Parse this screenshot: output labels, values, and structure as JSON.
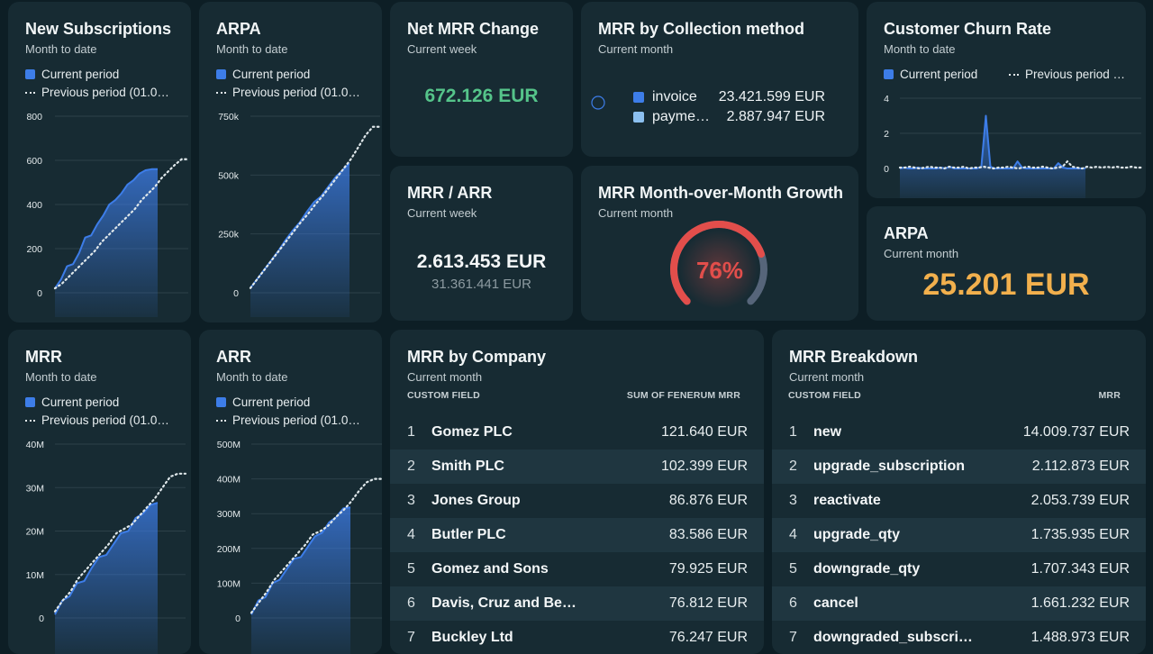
{
  "colors": {
    "background": "#0d1e25",
    "card": "#172b33",
    "series_blue": "#3d7de8",
    "series_light_blue": "#8cc0f0",
    "previous_dots": "#dfe7ea",
    "green_value": "#55c48a",
    "orange_value": "#f2b04d",
    "gauge_red": "#e24e4b",
    "gauge_track": "#56657a"
  },
  "legend": {
    "current": "Current period",
    "previous": "Previous period (01.0…",
    "previous_churn": "Previous period …"
  },
  "cards": {
    "new_subscriptions": {
      "title": "New Subscriptions",
      "subtitle": "Month to date"
    },
    "arpa_chart": {
      "title": "ARPA",
      "subtitle": "Month to date"
    },
    "net_mrr": {
      "title": "Net MRR Change",
      "subtitle": "Current week",
      "value": "672.126 EUR"
    },
    "collection": {
      "title": "MRR by Collection method",
      "subtitle": "Current month",
      "items": [
        {
          "label": "invoice",
          "value": "23.421.599 EUR"
        },
        {
          "label": "payme…",
          "value": "2.887.947 EUR"
        }
      ]
    },
    "churn": {
      "title": "Customer Churn Rate",
      "subtitle": "Month to date"
    },
    "mrr_arr": {
      "title": "MRR / ARR",
      "subtitle": "Current week",
      "value": "2.613.453 EUR",
      "secondary": "31.361.441 EUR"
    },
    "mom_growth": {
      "title": "MRR Month-over-Month Growth",
      "subtitle": "Current month",
      "value": "76%"
    },
    "arpa_kpi": {
      "title": "ARPA",
      "subtitle": "Current month",
      "value": "25.201 EUR"
    },
    "mrr_chart": {
      "title": "MRR",
      "subtitle": "Month to date"
    },
    "arr_chart": {
      "title": "ARR",
      "subtitle": "Month to date"
    },
    "mrr_company": {
      "title": "MRR by Company",
      "subtitle": "Current month",
      "col_left": "CUSTOM FIELD",
      "col_right": "SUM OF FENERUM MRR",
      "rows": [
        {
          "n": "1",
          "name": "Gomez PLC",
          "value": "121.640 EUR"
        },
        {
          "n": "2",
          "name": "Smith PLC",
          "value": "102.399 EUR"
        },
        {
          "n": "3",
          "name": "Jones Group",
          "value": "86.876 EUR"
        },
        {
          "n": "4",
          "name": "Butler PLC",
          "value": "83.586 EUR"
        },
        {
          "n": "5",
          "name": "Gomez and Sons",
          "value": "79.925 EUR"
        },
        {
          "n": "6",
          "name": "Davis, Cruz and Be…",
          "value": "76.812 EUR"
        },
        {
          "n": "7",
          "name": "Buckley Ltd",
          "value": "76.247 EUR"
        }
      ]
    },
    "mrr_breakdown": {
      "title": "MRR Breakdown",
      "subtitle": "Current month",
      "col_left": "CUSTOM FIELD",
      "col_right": "MRR",
      "rows": [
        {
          "n": "1",
          "name": "new",
          "value": "14.009.737 EUR"
        },
        {
          "n": "2",
          "name": "upgrade_subscription",
          "value": "2.112.873 EUR"
        },
        {
          "n": "3",
          "name": "reactivate",
          "value": "2.053.739 EUR"
        },
        {
          "n": "4",
          "name": "upgrade_qty",
          "value": "1.735.935 EUR"
        },
        {
          "n": "5",
          "name": "downgrade_qty",
          "value": "1.707.343 EUR"
        },
        {
          "n": "6",
          "name": "cancel",
          "value": "1.661.232 EUR"
        },
        {
          "n": "7",
          "name": "downgraded_subscri…",
          "value": "1.488.973 EUR"
        }
      ]
    }
  },
  "chart_data": [
    {
      "id": "new_subscriptions",
      "type": "area",
      "yticks": [
        "800",
        "600",
        "400",
        "200",
        "0"
      ],
      "ylim": [
        0,
        800
      ],
      "series": [
        {
          "name": "Current period",
          "values": [
            20,
            60,
            120,
            130,
            180,
            250,
            260,
            310,
            350,
            400,
            420,
            450,
            490,
            510,
            540,
            555,
            560,
            560
          ]
        },
        {
          "name": "Previous period (01.0…",
          "values": [
            20,
            40,
            70,
            100,
            130,
            160,
            190,
            230,
            260,
            290,
            320,
            350,
            380,
            420,
            450,
            480,
            520,
            550,
            580,
            605,
            605
          ]
        }
      ]
    },
    {
      "id": "arpa",
      "type": "area",
      "yticks": [
        "750k",
        "500k",
        "250k",
        "0"
      ],
      "ylim": [
        0,
        750000
      ],
      "series": [
        {
          "name": "Current period",
          "values": [
            20000,
            60000,
            100000,
            140000,
            180000,
            225000,
            265000,
            300000,
            345000,
            385000,
            410000,
            450000,
            490000,
            520000,
            550000
          ]
        },
        {
          "name": "Previous period (01.0…",
          "values": [
            20000,
            60000,
            100000,
            140000,
            180000,
            220000,
            260000,
            300000,
            335000,
            375000,
            410000,
            450000,
            490000,
            530000,
            570000,
            620000,
            670000,
            705000,
            705000
          ]
        }
      ]
    },
    {
      "id": "churn",
      "type": "line",
      "yticks": [
        "4",
        "2",
        "0"
      ],
      "ylim": [
        0,
        4
      ],
      "series": [
        {
          "name": "Current period",
          "values": [
            0,
            0.05,
            0,
            0,
            0.05,
            0,
            0,
            0,
            0,
            0.05,
            0,
            0.1,
            0,
            0,
            0,
            0,
            0,
            0,
            0.1,
            3.0,
            0.1,
            0,
            0,
            0,
            0,
            0,
            0.4,
            0.05,
            0,
            0,
            0,
            0,
            0,
            0,
            0,
            0.3,
            0.05,
            0,
            0,
            0,
            0,
            0
          ]
        },
        {
          "name": "Previous period …",
          "values": [
            0.05,
            0.05,
            0.1,
            0.05,
            0,
            0.05,
            0.1,
            0.05,
            0.05,
            0,
            0.1,
            0.05,
            0.05,
            0.1,
            0,
            0.05,
            0.05,
            0.1,
            0.05,
            0,
            0.05,
            0.05,
            0.1,
            0.05,
            0,
            0.05,
            0.1,
            0.05,
            0.05,
            0.1,
            0.05,
            0,
            0.05,
            0.1,
            0.4,
            0.1,
            0.05,
            0,
            0.1,
            0.05,
            0.1,
            0.05,
            0.1,
            0.05,
            0.1,
            0.05,
            0.05,
            0.1,
            0.05,
            0.05
          ]
        }
      ]
    },
    {
      "id": "mrr",
      "type": "area",
      "yticks": [
        "40M",
        "30M",
        "20M",
        "10M",
        "0"
      ],
      "ylim": [
        0,
        40000000
      ],
      "series": [
        {
          "name": "Current period",
          "values": [
            800000,
            4000000,
            5000000,
            8000000,
            8500000,
            11500000,
            14000000,
            14500000,
            17000000,
            19500000,
            20000000,
            23000000,
            24000000,
            26000000,
            26500000
          ]
        },
        {
          "name": "Previous period (01.0…",
          "values": [
            1500000,
            4000000,
            6000000,
            9000000,
            11000000,
            13000000,
            15000000,
            17000000,
            19500000,
            20500000,
            21500000,
            23500000,
            25500000,
            27500000,
            30000000,
            32500000,
            33200000,
            33200000
          ]
        }
      ]
    },
    {
      "id": "arr",
      "type": "area",
      "yticks": [
        "500M",
        "400M",
        "300M",
        "200M",
        "100M",
        "0"
      ],
      "ylim": [
        0,
        500000000
      ],
      "series": [
        {
          "name": "Current period",
          "values": [
            10000000,
            50000000,
            60000000,
            100000000,
            110000000,
            140000000,
            170000000,
            175000000,
            205000000,
            235000000,
            245000000,
            275000000,
            290000000,
            315000000,
            318000000
          ]
        },
        {
          "name": "Previous period (01.0…",
          "values": [
            15000000,
            45000000,
            75000000,
            110000000,
            135000000,
            160000000,
            185000000,
            210000000,
            240000000,
            250000000,
            265000000,
            290000000,
            310000000,
            335000000,
            365000000,
            390000000,
            400000000,
            400000000
          ]
        }
      ]
    },
    {
      "id": "mom_growth",
      "type": "gauge",
      "value": 76,
      "max": 100
    },
    {
      "id": "collection_method",
      "type": "pie",
      "categories": [
        "invoice",
        "payme…"
      ],
      "values": [
        23421599,
        2887947
      ]
    }
  ]
}
